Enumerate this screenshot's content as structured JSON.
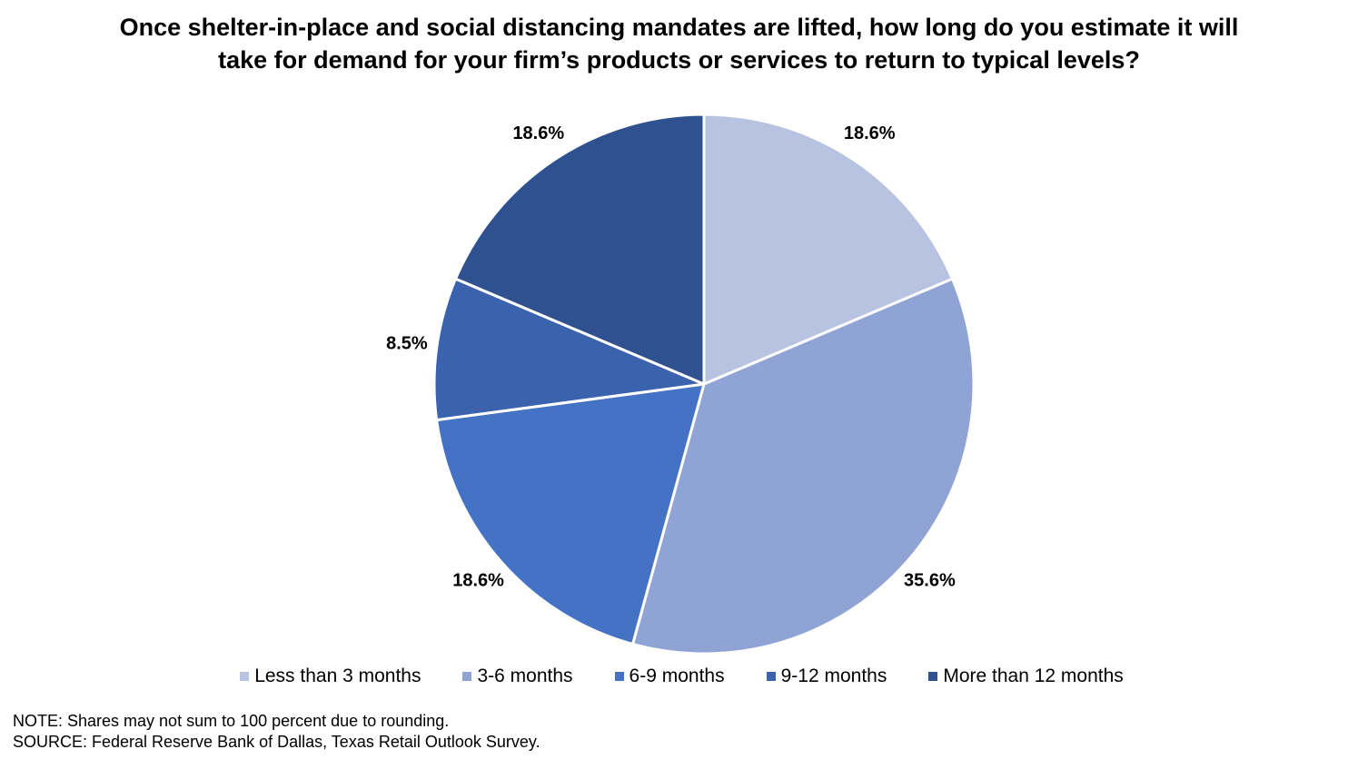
{
  "title_lines": [
    "Once shelter-in-place and social distancing mandates are lifted, how long do you estimate it will",
    "take for demand for your firm’s products or services to return to typical levels?"
  ],
  "note": "NOTE: Shares may not sum to 100 percent due to rounding.",
  "source": "SOURCE: Federal Reserve Bank of Dallas, Texas Retail Outlook Survey.",
  "chart_data": {
    "type": "pie",
    "title": "Once shelter-in-place and social distancing mandates are lifted, how long do you estimate it will take for demand for your firm’s products or services to return to typical levels?",
    "categories": [
      "Less than 3 months",
      "3-6 months",
      "6-9 months",
      "9-12 months",
      "More than 12 months"
    ],
    "values": [
      18.6,
      35.6,
      18.6,
      8.5,
      18.6
    ],
    "labels": [
      "18.6%",
      "35.6%",
      "18.6%",
      "8.5%",
      "18.6%"
    ],
    "colors": [
      "#b8c3e2",
      "#8fa3d5",
      "#4472c4",
      "#3a62ad",
      "#30518f"
    ],
    "legend_position": "bottom",
    "start_angle": "12 o'clock",
    "direction": "clockwise"
  }
}
